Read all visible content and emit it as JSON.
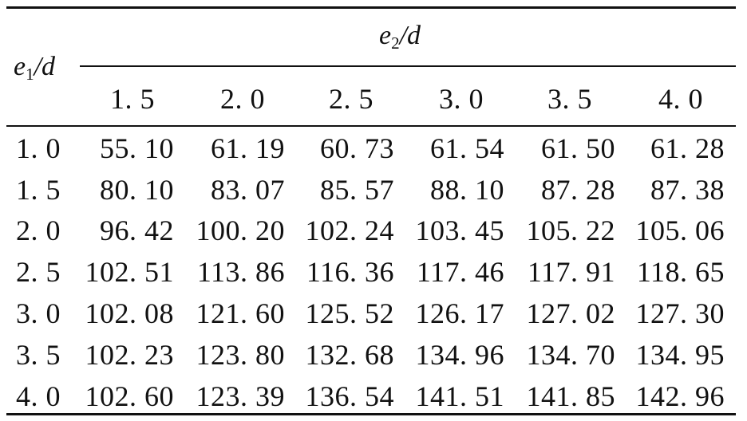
{
  "table": {
    "row_var": {
      "base": "e",
      "sub": "1",
      "tail": "/d"
    },
    "col_var": {
      "base": "e",
      "sub": "2",
      "tail": "/d"
    },
    "columns": [
      "1. 5",
      "2. 0",
      "2. 5",
      "3. 0",
      "3. 5",
      "4. 0"
    ],
    "rows": [
      {
        "label": "1. 0",
        "values": [
          "55. 10",
          "61. 19",
          "60. 73",
          "61. 54",
          "61. 50",
          "61. 28"
        ]
      },
      {
        "label": "1. 5",
        "values": [
          "80. 10",
          "83. 07",
          "85. 57",
          "88. 10",
          "87. 28",
          "87. 38"
        ]
      },
      {
        "label": "2. 0",
        "values": [
          "96. 42",
          "100. 20",
          "102. 24",
          "103. 45",
          "105. 22",
          "105. 06"
        ]
      },
      {
        "label": "2. 5",
        "values": [
          "102. 51",
          "113. 86",
          "116. 36",
          "117. 46",
          "117. 91",
          "118. 65"
        ]
      },
      {
        "label": "3. 0",
        "values": [
          "102. 08",
          "121. 60",
          "125. 52",
          "126. 17",
          "127. 02",
          "127. 30"
        ]
      },
      {
        "label": "3. 5",
        "values": [
          "102. 23",
          "123. 80",
          "132. 68",
          "134. 96",
          "134. 70",
          "134. 95"
        ]
      },
      {
        "label": "4. 0",
        "values": [
          "102. 60",
          "123. 39",
          "136. 54",
          "141. 51",
          "141. 85",
          "142. 96"
        ]
      }
    ]
  }
}
